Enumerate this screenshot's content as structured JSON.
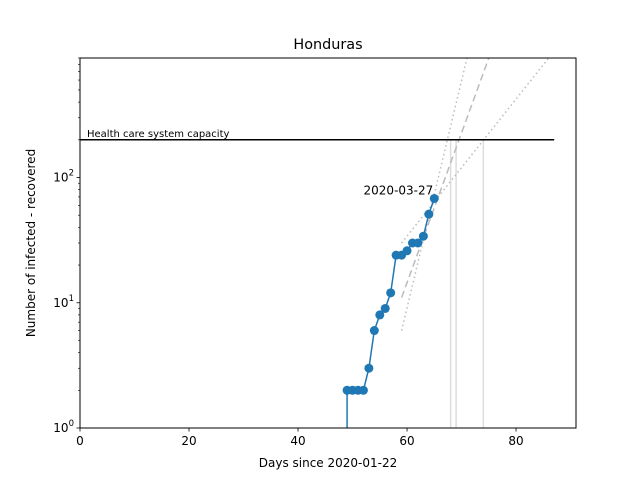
{
  "chart_data": {
    "type": "line",
    "title": "Honduras",
    "xlabel": "Days since 2020-01-22",
    "ylabel": "Number of infected - recovered",
    "yscale": "log",
    "xlim": [
      0,
      91
    ],
    "ylim": [
      1,
      900
    ],
    "x_ticks": [
      0,
      20,
      40,
      60,
      80
    ],
    "y_ticks": [
      {
        "value": 1,
        "label_base": "10",
        "label_exp": "0"
      },
      {
        "value": 10,
        "label_base": "10",
        "label_exp": "1"
      },
      {
        "value": 100,
        "label_base": "10",
        "label_exp": "2"
      }
    ],
    "grid": false,
    "series": [
      {
        "color": "#1f77b4",
        "x": [
          49,
          50,
          51,
          52,
          53,
          54,
          55,
          56,
          57,
          58,
          59,
          60,
          61,
          62,
          63,
          64,
          65
        ],
        "y": [
          2,
          2,
          2,
          2,
          3,
          6,
          8,
          9,
          12,
          24,
          24,
          26,
          30,
          30,
          34,
          51,
          68
        ]
      }
    ],
    "series_drop_line": {
      "x": 49,
      "y_from": 2,
      "y_to": 1,
      "color": "#1f77b4"
    },
    "capacity_line": {
      "label": "Health care system capacity",
      "y": 200,
      "x_from": 0,
      "x_to": 87,
      "color": "#000000"
    },
    "date_annotation": {
      "text": "2020-03-27",
      "x": 65,
      "y": 68
    },
    "fit_lines": [
      {
        "style": "dashed",
        "color": "#bbbbbb",
        "points": [
          [
            59,
            11
          ],
          [
            75,
            900
          ]
        ]
      },
      {
        "style": "dotted",
        "color": "#bbbbbb",
        "points": [
          [
            59,
            6
          ],
          [
            71,
            900
          ]
        ]
      },
      {
        "style": "dotted",
        "color": "#bbbbbb",
        "points": [
          [
            59,
            30
          ],
          [
            86,
            900
          ]
        ]
      }
    ],
    "vertical_markers": [
      {
        "x": 68,
        "color": "#dddddd"
      },
      {
        "x": 69,
        "color": "#dddddd"
      },
      {
        "x": 74,
        "color": "#dddddd"
      }
    ]
  }
}
